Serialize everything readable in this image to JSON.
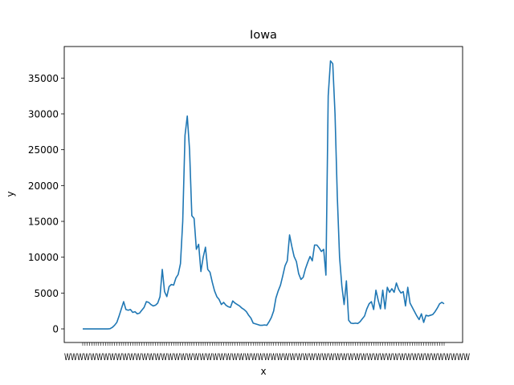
{
  "chart_data": {
    "type": "line",
    "title": "Iowa",
    "xlabel": "x",
    "ylabel": "y",
    "ylim": [
      -1900,
      39400
    ],
    "y_ticks": [
      0,
      5000,
      10000,
      15000,
      20000,
      25000,
      30000,
      35000
    ],
    "x_tick_labels_legible": false,
    "grid": false,
    "colors": {
      "line": "#1f77b4"
    },
    "series": [
      {
        "values": [
          0,
          0,
          0,
          0,
          0,
          0,
          0,
          0,
          0,
          0,
          0,
          0,
          20,
          200,
          500,
          900,
          1800,
          2800,
          3800,
          2700,
          2600,
          2700,
          2300,
          2400,
          2100,
          2200,
          2600,
          3000,
          3800,
          3700,
          3400,
          3200,
          3300,
          3600,
          4500,
          8300,
          5200,
          4500,
          5900,
          6200,
          6100,
          7100,
          7600,
          9100,
          15000,
          27000,
          29700,
          25000,
          15800,
          15400,
          11100,
          11800,
          8000,
          10000,
          11400,
          8300,
          7900,
          6500,
          5300,
          4500,
          4100,
          3400,
          3700,
          3300,
          3100,
          3000,
          3900,
          3600,
          3400,
          3200,
          2900,
          2700,
          2400,
          1900,
          1500,
          800,
          700,
          600,
          500,
          500,
          550,
          500,
          1000,
          1600,
          2500,
          4300,
          5300,
          6100,
          7400,
          8800,
          9500,
          13100,
          11500,
          10100,
          9400,
          7700,
          6900,
          7200,
          8400,
          9300,
          10100,
          9500,
          11700,
          11700,
          11300,
          10800,
          11100,
          7500,
          32500,
          37400,
          37000,
          30000,
          18500,
          10000,
          6000,
          3400,
          6700,
          1200,
          800,
          750,
          800,
          750,
          1000,
          1400,
          1800,
          2800,
          3500,
          3800,
          2700,
          5400,
          4000,
          2800,
          5400,
          2800,
          5800,
          5100,
          5600,
          5100,
          6400,
          5500,
          5000,
          5200,
          3200,
          5800,
          3600,
          3000,
          2400,
          1800,
          1300,
          2100,
          900,
          1900,
          1800,
          1900,
          2000,
          2400,
          2900,
          3500,
          3700,
          3500
        ]
      }
    ]
  }
}
